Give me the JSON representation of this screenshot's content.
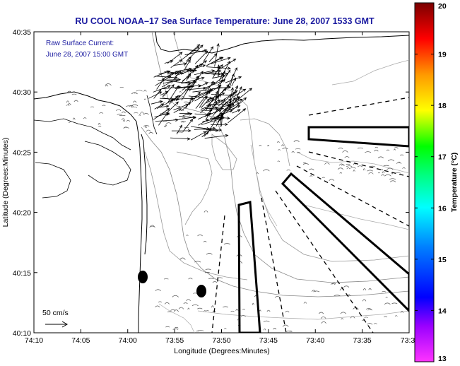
{
  "title": "RU COOL   NOAA–17  Sea Surface Temperature:  June 28, 2007 1533 GMT",
  "annotation": {
    "line1": "Raw Surface Current:",
    "line2": "June 28, 2007 15:00 GMT"
  },
  "scale_label": "50 cm/s",
  "colorbar": {
    "label": "Temperature (°C)",
    "ticks": [
      "20",
      "19",
      "18",
      "17",
      "16",
      "15",
      "14",
      "13"
    ],
    "min": 13,
    "max": 20,
    "colors": [
      "#ff00ff",
      "#0000ff",
      "#00ffff",
      "#00ff00",
      "#ffff00",
      "#ff8000",
      "#ff0000",
      "#800000"
    ]
  },
  "chart_data": {
    "type": "map",
    "title": "RU COOL   NOAA–17  Sea Surface Temperature:  June 28, 2007 1533 GMT",
    "xlabel": "Longitude (Degrees:Minutes)",
    "ylabel": "Latitude (Degrees:Minutes)",
    "xticks": [
      "74:10",
      "74:05",
      "74:00",
      "73:55",
      "73:50",
      "73:45",
      "73:40",
      "73:35",
      "73:3"
    ],
    "yticks": [
      "40:35",
      "40:30",
      "40:25",
      "40:20",
      "40:15",
      "40:10"
    ],
    "grid": false
  },
  "icons": {
    "scale_arrow": "right-arrow-icon",
    "buoy": "filled-ellipse-marker"
  }
}
